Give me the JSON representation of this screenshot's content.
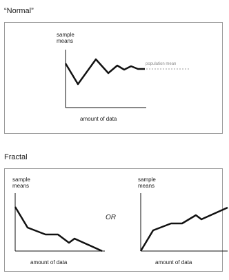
{
  "normal": {
    "title": "“Normal”",
    "ylabel": "sample\nmeans",
    "xlabel": "amount of data",
    "reference_label": "population mean"
  },
  "fractal": {
    "title": "Fractal",
    "left": {
      "ylabel": "sample\nmeans",
      "xlabel": "amount of data"
    },
    "or_label": "OR",
    "right": {
      "ylabel": "sample\nmeans",
      "xlabel": "amount of data"
    }
  },
  "colors": {
    "line": "#111111",
    "frame": "#9a9a9a",
    "reference": "#9a9a9a"
  }
}
